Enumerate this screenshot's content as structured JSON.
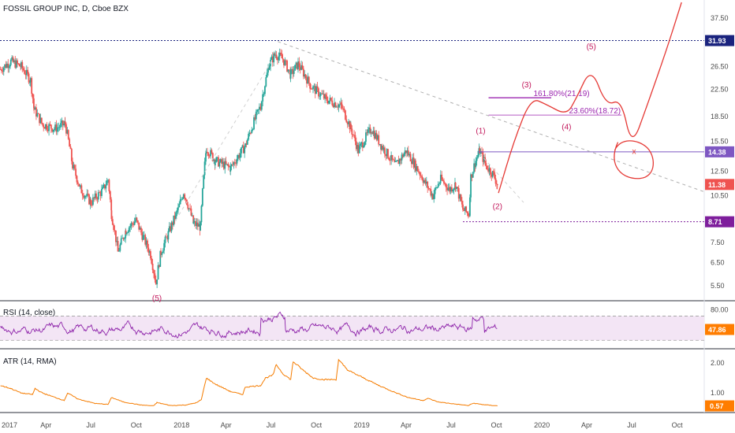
{
  "header": {
    "title": "FOSSIL GROUP INC, D, Cboe BZX"
  },
  "panels": {
    "rsi": {
      "title": "RSI (14, close)",
      "value_label": "47.86"
    },
    "atr": {
      "title": "ATR (14, RMA)",
      "value_label": "0.57"
    }
  },
  "colors": {
    "up": "#26a69a",
    "down": "#ef5350",
    "rsi_line": "#8e24aa",
    "rsi_band": "#f3e5f5",
    "atr_line": "#f57c00",
    "level_line": "#1a237e",
    "fib_line": "#9c27b0",
    "annotation": "#c2185b",
    "drawing": "#e53935"
  },
  "chart_data": [
    {
      "type": "candlestick",
      "title": "FOSSIL GROUP INC, D, Cboe BZX",
      "yscale": "log",
      "ylim": [
        5.0,
        42.0
      ],
      "price_ticks": [
        "37.50",
        "31.93",
        "26.50",
        "22.50",
        "18.50",
        "15.50",
        "14.38",
        "12.50",
        "11.38",
        "10.50",
        "8.71",
        "7.50",
        "6.50",
        "5.50"
      ],
      "x_ticks": [
        "2017",
        "Apr",
        "Jul",
        "Oct",
        "2018",
        "Apr",
        "Jul",
        "Oct",
        "2019",
        "Apr",
        "Jul",
        "Oct",
        "2020",
        "Apr",
        "Jul",
        "Oct"
      ],
      "x_tick_dates": [
        "2017-01-01",
        "2017-04-01",
        "2017-07-01",
        "2017-10-01",
        "2018-01-01",
        "2018-04-01",
        "2018-07-01",
        "2018-10-01",
        "2019-01-01",
        "2019-04-01",
        "2019-07-01",
        "2019-10-01",
        "2020-01-01",
        "2020-04-01",
        "2020-07-01",
        "2020-10-01"
      ],
      "x_range": [
        "2016-12-29",
        "2020-11-25"
      ],
      "close_path": [
        [
          "2016-12-30",
          26.0
        ],
        [
          "2017-01-20",
          27.5
        ],
        [
          "2017-02-10",
          26.5
        ],
        [
          "2017-03-01",
          24.0
        ],
        [
          "2017-03-08",
          19.5
        ],
        [
          "2017-03-25",
          17.5
        ],
        [
          "2017-04-20",
          17.0
        ],
        [
          "2017-05-10",
          17.6
        ],
        [
          "2017-05-25",
          13.0
        ],
        [
          "2017-06-10",
          11.0
        ],
        [
          "2017-07-01",
          10.0
        ],
        [
          "2017-07-25",
          10.9
        ],
        [
          "2017-08-05",
          11.8
        ],
        [
          "2017-08-12",
          9.2
        ],
        [
          "2017-08-25",
          7.0
        ],
        [
          "2017-09-10",
          8.2
        ],
        [
          "2017-09-30",
          8.8
        ],
        [
          "2017-10-15",
          7.8
        ],
        [
          "2017-10-30",
          6.9
        ],
        [
          "2017-11-10",
          5.6
        ],
        [
          "2017-11-20",
          7.0
        ],
        [
          "2017-12-05",
          8.0
        ],
        [
          "2017-12-25",
          9.5
        ],
        [
          "2018-01-05",
          10.8
        ],
        [
          "2018-01-25",
          8.6
        ],
        [
          "2018-02-08",
          8.4
        ],
        [
          "2018-02-20",
          14.8
        ],
        [
          "2018-03-10",
          13.5
        ],
        [
          "2018-04-10",
          12.8
        ],
        [
          "2018-05-10",
          15.0
        ],
        [
          "2018-06-10",
          20.0
        ],
        [
          "2018-06-28",
          27.0
        ],
        [
          "2018-07-10",
          29.0
        ],
        [
          "2018-07-25",
          28.0
        ],
        [
          "2018-08-10",
          25.0
        ],
        [
          "2018-08-25",
          27.0
        ],
        [
          "2018-09-20",
          23.0
        ],
        [
          "2018-10-20",
          21.0
        ],
        [
          "2018-11-20",
          20.0
        ],
        [
          "2018-12-10",
          17.0
        ],
        [
          "2018-12-25",
          14.5
        ],
        [
          "2019-01-20",
          17.0
        ],
        [
          "2019-02-10",
          15.0
        ],
        [
          "2019-03-10",
          13.0
        ],
        [
          "2019-04-01",
          14.5
        ],
        [
          "2019-04-20",
          13.0
        ],
        [
          "2019-05-10",
          11.5
        ],
        [
          "2019-05-25",
          10.5
        ],
        [
          "2019-06-10",
          11.8
        ],
        [
          "2019-06-28",
          11.0
        ],
        [
          "2019-07-10",
          11.4
        ],
        [
          "2019-07-25",
          9.5
        ],
        [
          "2019-08-06",
          9.2
        ],
        [
          "2019-08-10",
          12.0
        ],
        [
          "2019-08-20",
          13.5
        ],
        [
          "2019-08-28",
          14.5
        ],
        [
          "2019-09-10",
          13.0
        ],
        [
          "2019-09-25",
          12.2
        ],
        [
          "2019-10-03",
          11.38
        ]
      ],
      "horizontal_levels": [
        {
          "value": 31.93,
          "label": "31.93",
          "style": "dotted",
          "color": "#1a237e"
        },
        {
          "value": 14.38,
          "label": "14.38",
          "style": "solid",
          "color": "#7e57c2"
        },
        {
          "value": 8.71,
          "label": "8.71",
          "style": "dotted",
          "color": "#7e1e9c"
        }
      ],
      "last_price": {
        "value": 11.38,
        "label": "11.38",
        "color": "#ef5350"
      },
      "fib_levels": [
        {
          "value": 21.19,
          "label": "161.80%(21.19)"
        },
        {
          "value": 18.72,
          "label": "23.60%(18.72)"
        }
      ],
      "wave_labels": [
        {
          "text": "(5)",
          "date": "2017-11-12",
          "price": 4.95
        },
        {
          "text": "(1)",
          "date": "2019-08-30",
          "price": 16.4
        },
        {
          "text": "(2)",
          "date": "2019-10-03",
          "price": 9.55
        },
        {
          "text": "(3)",
          "date": "2019-12-01",
          "price": 22.8
        },
        {
          "text": "(4)",
          "date": "2020-02-20",
          "price": 16.9
        },
        {
          "text": "(5)",
          "date": "2020-04-10",
          "price": 30.0
        }
      ],
      "projection_path": [
        [
          "2019-10-05",
          10.7
        ],
        [
          "2019-11-05",
          15.5
        ],
        [
          "2019-12-10",
          21.2
        ],
        [
          "2020-01-10",
          20.2
        ],
        [
          "2020-02-20",
          18.7
        ],
        [
          "2020-03-10",
          21.0
        ],
        [
          "2020-04-10",
          26.5
        ],
        [
          "2020-05-10",
          20.0
        ],
        [
          "2020-06-10",
          21.0
        ],
        [
          "2020-07-01",
          14.8
        ],
        [
          "2020-08-01",
          20.0
        ],
        [
          "2020-09-10",
          30.0
        ],
        [
          "2020-10-10",
          42.0
        ]
      ],
      "trendline": [
        [
          "2018-07-15",
          31.7
        ],
        [
          "2020-11-25",
          10.8
        ]
      ],
      "circle_marker": {
        "date": "2020-07-05",
        "price": 14.4,
        "label": "x"
      }
    },
    {
      "type": "line",
      "title": "RSI (14, close)",
      "ylim": [
        20,
        90
      ],
      "band": [
        30,
        70
      ],
      "y_ticks": [
        "80.00"
      ],
      "last_value": 47.86
    },
    {
      "type": "line",
      "title": "ATR (14, RMA)",
      "ylim": [
        0.4,
        2.4
      ],
      "y_ticks": [
        "2.00",
        "1.00"
      ],
      "last_value": 0.57,
      "path": [
        [
          "2016-12-30",
          1.25
        ],
        [
          "2017-01-20",
          1.15
        ],
        [
          "2017-02-10",
          1.0
        ],
        [
          "2017-03-05",
          0.95
        ],
        [
          "2017-03-10",
          1.15
        ],
        [
          "2017-03-25",
          1.0
        ],
        [
          "2017-04-20",
          0.85
        ],
        [
          "2017-05-08",
          0.75
        ],
        [
          "2017-05-15",
          1.0
        ],
        [
          "2017-06-05",
          0.8
        ],
        [
          "2017-07-10",
          0.65
        ],
        [
          "2017-08-05",
          0.62
        ],
        [
          "2017-08-12",
          0.85
        ],
        [
          "2017-09-05",
          0.7
        ],
        [
          "2017-10-10",
          0.6
        ],
        [
          "2017-11-05",
          0.57
        ],
        [
          "2017-11-12",
          0.68
        ],
        [
          "2017-12-10",
          0.58
        ],
        [
          "2018-01-10",
          0.6
        ],
        [
          "2018-02-01",
          0.68
        ],
        [
          "2018-02-10",
          0.78
        ],
        [
          "2018-02-20",
          1.5
        ],
        [
          "2018-03-10",
          1.3
        ],
        [
          "2018-04-10",
          1.05
        ],
        [
          "2018-05-05",
          0.95
        ],
        [
          "2018-05-10",
          1.2
        ],
        [
          "2018-06-10",
          1.25
        ],
        [
          "2018-06-20",
          1.5
        ],
        [
          "2018-07-05",
          1.6
        ],
        [
          "2018-07-12",
          1.95
        ],
        [
          "2018-07-25",
          1.65
        ],
        [
          "2018-08-10",
          1.45
        ],
        [
          "2018-08-15",
          2.05
        ],
        [
          "2018-09-05",
          1.75
        ],
        [
          "2018-09-25",
          1.5
        ],
        [
          "2018-10-15",
          1.45
        ],
        [
          "2018-11-10",
          1.45
        ],
        [
          "2018-11-15",
          2.1
        ],
        [
          "2018-12-05",
          1.75
        ],
        [
          "2019-01-05",
          1.5
        ],
        [
          "2019-02-05",
          1.25
        ],
        [
          "2019-03-05",
          1.05
        ],
        [
          "2019-04-05",
          0.85
        ],
        [
          "2019-05-05",
          0.75
        ],
        [
          "2019-05-15",
          0.82
        ],
        [
          "2019-06-05",
          0.7
        ],
        [
          "2019-07-05",
          0.64
        ],
        [
          "2019-08-05",
          0.58
        ],
        [
          "2019-08-15",
          0.66
        ],
        [
          "2019-09-05",
          0.61
        ],
        [
          "2019-10-03",
          0.57
        ]
      ]
    }
  ]
}
